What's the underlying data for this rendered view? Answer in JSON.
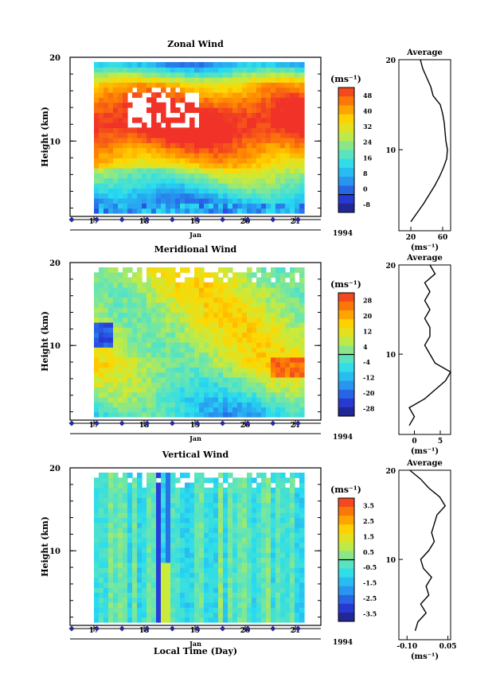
{
  "figure": {
    "xlabel": "Local Time (Day)",
    "year": "1994",
    "month": "Jan",
    "day_ticks": [
      "17",
      "18",
      "19",
      "20",
      "21"
    ],
    "height_ticks": [
      "10",
      "20"
    ]
  },
  "chart_data": [
    {
      "type": "heatmap",
      "title": "Zonal Wind",
      "ylabel": "Height (km)",
      "xlabel": "Jan",
      "unit_label": "(ms⁻¹)",
      "x_range": [
        16.55,
        21.5
      ],
      "ylim": [
        1,
        20
      ],
      "colorbar": {
        "ticks": [
          "48",
          "40",
          "32",
          "24",
          "16",
          "8",
          "0",
          "-8"
        ],
        "min": -8,
        "max": 48
      },
      "profile": {
        "title": "Average",
        "xlabel": "(ms⁻¹)",
        "xticks": [
          "20",
          "60"
        ],
        "xlim": [
          5,
          70
        ],
        "height": [
          2,
          3,
          4,
          5,
          6,
          7,
          8,
          9,
          10,
          11,
          12,
          13,
          14,
          15,
          16,
          17,
          18,
          19,
          20
        ],
        "values": [
          20,
          28,
          36,
          43,
          50,
          56,
          61,
          65,
          66,
          64,
          63,
          62,
          60,
          57,
          48,
          45,
          40,
          35,
          32
        ]
      }
    },
    {
      "type": "heatmap",
      "title": "Meridional Wind",
      "ylabel": "Height (km)",
      "xlabel": "Jan",
      "unit_label": "(ms⁻¹)",
      "x_range": [
        16.55,
        21.5
      ],
      "ylim": [
        1,
        20
      ],
      "colorbar": {
        "ticks": [
          "28",
          "20",
          "12",
          "4",
          "-4",
          "-12",
          "-20",
          "-28"
        ],
        "min": -28,
        "max": 28
      },
      "profile": {
        "title": "Average",
        "xlabel": "(ms⁻¹)",
        "xticks": [
          "0",
          "5"
        ],
        "xlim": [
          -3,
          7
        ],
        "height": [
          2,
          3,
          4,
          5,
          6,
          7,
          8,
          9,
          10,
          11,
          12,
          13,
          14,
          15,
          16,
          17,
          18,
          19,
          20
        ],
        "values": [
          -1,
          0,
          -1,
          2,
          4,
          6,
          7,
          4,
          3,
          2,
          3,
          3,
          2,
          3,
          2,
          3,
          2,
          4,
          3
        ]
      }
    },
    {
      "type": "heatmap",
      "title": "Vertical Wind",
      "ylabel": "Height (km)",
      "xlabel": "Jan",
      "unit_label": "(ms⁻¹)",
      "x_range": [
        16.55,
        21.5
      ],
      "ylim": [
        1,
        20
      ],
      "colorbar": {
        "ticks": [
          "3.5",
          "2.5",
          "1.5",
          "0.5",
          "-0.5",
          "-1.5",
          "-2.5",
          "-3.5"
        ],
        "min": -3.5,
        "max": 3.5
      },
      "profile": {
        "title": "Average",
        "xlabel": "(ms⁻¹)",
        "xticks": [
          "-0.10",
          "0.05"
        ],
        "xlim": [
          -0.13,
          0.06
        ],
        "height": [
          2,
          3,
          4,
          5,
          6,
          7,
          8,
          9,
          10,
          11,
          12,
          13,
          14,
          15,
          16,
          17,
          18,
          19,
          20
        ],
        "values": [
          -0.07,
          -0.06,
          -0.03,
          -0.05,
          -0.02,
          -0.03,
          -0.01,
          -0.04,
          -0.05,
          -0.02,
          0.0,
          -0.01,
          0.0,
          0.01,
          0.04,
          0.02,
          -0.02,
          -0.05,
          -0.09
        ]
      }
    }
  ]
}
